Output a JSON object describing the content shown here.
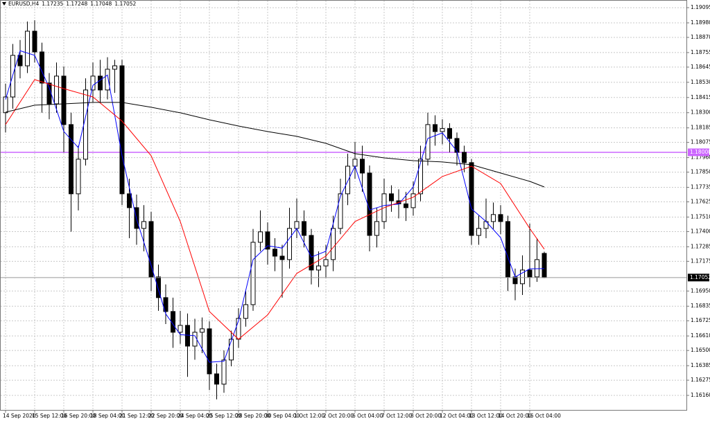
{
  "chart_data": {
    "type": "candlestick",
    "title": "EURUSD,H4",
    "categories": [
      "14 Sep 2020",
      null,
      null,
      null,
      "15 Sep 12:00",
      null,
      null,
      null,
      "16 Sep 20:00",
      null,
      null,
      null,
      "18 Sep 04:00",
      null,
      null,
      null,
      "21 Sep 12:00",
      null,
      null,
      null,
      "22 Sep 20:00",
      null,
      null,
      null,
      "24 Sep 04:00",
      null,
      null,
      null,
      "25 Sep 12:00",
      null,
      null,
      null,
      "28 Sep 20:00",
      null,
      null,
      null,
      "30 Sep 04:00",
      null,
      null,
      null,
      "1 Oct 12:00",
      null,
      null,
      null,
      "2 Oct 20:00",
      null,
      null,
      null,
      "6 Oct 04:00",
      null,
      null,
      null,
      "7 Oct 12:00",
      null,
      null,
      null,
      "8 Oct 20:00",
      null,
      null,
      null,
      "12 Oct 04:00",
      null,
      null,
      null,
      "13 Oct 12:00",
      null,
      null,
      null,
      "14 Oct 20:00",
      null,
      null,
      null,
      "16 Oct 04:00",
      null,
      null
    ],
    "open": [
      1.183,
      1.18419,
      1.18734,
      1.18655,
      1.18917,
      1.1876,
      1.18524,
      1.18367,
      1.18577,
      1.1821,
      1.17686,
      1.17948,
      1.18472,
      1.18577,
      1.18472,
      1.18629,
      1.18655,
      1.17686,
      1.17581,
      1.17424,
      1.17476,
      1.17057,
      1.169,
      1.16795,
      1.16638,
      1.1669,
      1.16533,
      1.16638,
      1.16664,
      1.16323,
      1.16245,
      1.16428,
      1.16585,
      1.16743,
      1.16847,
      1.17319,
      1.17398,
      1.17267,
      1.17214,
      1.17188,
      1.17424,
      1.17476,
      1.17371,
      1.17109,
      1.1714,
      1.17188,
      1.17424,
      1.17686,
      1.17895,
      1.17948,
      1.17843,
      1.17371,
      1.17476,
      1.17686,
      1.17633,
      1.1761,
      1.17581,
      1.17686,
      1.17948,
      1.1821,
      1.18157,
      1.1818,
      1.18105,
      1.18,
      1.17922,
      1.17371,
      1.17424,
      1.17476,
      1.17529,
      1.17476,
      1.17057,
      1.17005,
      1.17109,
      1.17057,
      1.17235
    ],
    "high": [
      1.1852,
      1.1882,
      1.1885,
      1.1899,
      1.19,
      1.1883,
      1.186,
      1.1868,
      1.1865,
      1.183,
      1.1805,
      1.1856,
      1.1868,
      1.187,
      1.1872,
      1.187,
      1.187,
      1.178,
      1.1768,
      1.176,
      1.1755,
      1.1715,
      1.17,
      1.169,
      1.168,
      1.1678,
      1.1674,
      1.1675,
      1.1672,
      1.164,
      1.165,
      1.1665,
      1.1682,
      1.1695,
      1.1742,
      1.1756,
      1.1747,
      1.1735,
      1.173,
      1.1758,
      1.1765,
      1.1756,
      1.1742,
      1.1725,
      1.173,
      1.1752,
      1.178,
      1.1799,
      1.1808,
      1.1805,
      1.179,
      1.1758,
      1.178,
      1.1775,
      1.1772,
      1.177,
      1.1778,
      1.1805,
      1.183,
      1.1828,
      1.1825,
      1.1822,
      1.1815,
      1.1805,
      1.1795,
      1.1752,
      1.1765,
      1.1762,
      1.176,
      1.1752,
      1.1712,
      1.1722,
      1.1746,
      1.1735,
      1.17248
    ],
    "low": [
      1.1815,
      1.1833,
      1.1856,
      1.186,
      1.1868,
      1.183,
      1.1825,
      1.183,
      1.18,
      1.174,
      1.1756,
      1.179,
      1.1838,
      1.1838,
      1.184,
      1.1845,
      1.176,
      1.1735,
      1.173,
      1.1725,
      1.1695,
      1.168,
      1.167,
      1.1652,
      1.1655,
      1.163,
      1.1643,
      1.1648,
      1.162,
      1.1613,
      1.1618,
      1.1638,
      1.1652,
      1.1668,
      1.168,
      1.1725,
      1.1715,
      1.171,
      1.169,
      1.1712,
      1.1735,
      1.1728,
      1.17,
      1.1698,
      1.1705,
      1.171,
      1.1738,
      1.176,
      1.178,
      1.177,
      1.1725,
      1.1728,
      1.1742,
      1.1755,
      1.175,
      1.1748,
      1.1752,
      1.1763,
      1.179,
      1.1805,
      1.1806,
      1.18,
      1.179,
      1.1785,
      1.173,
      1.173,
      1.1735,
      1.1742,
      1.1738,
      1.1695,
      1.1688,
      1.1692,
      1.1698,
      1.1702,
      1.17048
    ],
    "close": [
      1.18419,
      1.18734,
      1.18655,
      1.18917,
      1.1876,
      1.18524,
      1.18367,
      1.18577,
      1.1821,
      1.17686,
      1.17948,
      1.18472,
      1.18577,
      1.18472,
      1.18629,
      1.18655,
      1.17686,
      1.17581,
      1.17424,
      1.17476,
      1.17057,
      1.169,
      1.16795,
      1.16638,
      1.1669,
      1.16533,
      1.16638,
      1.16664,
      1.16323,
      1.16245,
      1.16428,
      1.16585,
      1.16743,
      1.16847,
      1.17319,
      1.17398,
      1.17267,
      1.17214,
      1.17188,
      1.17424,
      1.17476,
      1.17371,
      1.17109,
      1.1714,
      1.17188,
      1.17424,
      1.17686,
      1.17895,
      1.17948,
      1.17843,
      1.17371,
      1.17476,
      1.17686,
      1.17633,
      1.1761,
      1.17581,
      1.17686,
      1.17948,
      1.1821,
      1.18157,
      1.1818,
      1.18105,
      1.18,
      1.17922,
      1.17371,
      1.17424,
      1.17476,
      1.17529,
      1.17476,
      1.17057,
      1.17005,
      1.17109,
      1.17057,
      1.17188,
      1.17052
    ],
    "up_color": "#ffffff",
    "down_color": "#000000",
    "lines": [
      {
        "color": "#0000ff",
        "x": [
          0,
          2,
          4,
          6,
          8,
          10,
          12,
          14,
          16,
          18,
          20,
          22,
          24,
          26,
          28,
          30,
          32,
          34,
          36,
          38,
          40,
          42,
          44,
          46,
          48,
          50,
          52,
          54,
          56,
          58,
          60,
          62,
          64,
          66,
          68,
          70,
          72,
          74
        ],
        "values": [
          1.184,
          1.18769,
          1.18734,
          1.18489,
          1.18158,
          1.18035,
          1.18507,
          1.18585,
          1.17974,
          1.17494,
          1.17144,
          1.16778,
          1.1662,
          1.16612,
          1.16411,
          1.16419,
          1.16725,
          1.17188,
          1.17293,
          1.17275,
          1.17424,
          1.17207,
          1.17251,
          1.17668,
          1.17895,
          1.17563,
          1.17598,
          1.17608,
          1.17738,
          1.18105,
          1.18147,
          1.18009,
          1.17572,
          1.17476,
          1.17354,
          1.17057,
          1.17118,
          1.1712
        ]
      },
      {
        "color": "#ff0000",
        "x": [
          0,
          4,
          8,
          12,
          16,
          20,
          24,
          28,
          32,
          36,
          40,
          44,
          48,
          52,
          56,
          60,
          64,
          68,
          72,
          74
        ],
        "values": [
          1.1821,
          1.1855,
          1.18482,
          1.18419,
          1.18236,
          1.17974,
          1.17476,
          1.16795,
          1.16585,
          1.16769,
          1.17083,
          1.17214,
          1.17476,
          1.17581,
          1.1766,
          1.17817,
          1.17895,
          1.17764,
          1.17424,
          1.17267
        ]
      },
      {
        "color": "#000000",
        "x": [
          0,
          4,
          8,
          12,
          16,
          20,
          24,
          28,
          32,
          36,
          40,
          44,
          48,
          52,
          56,
          60,
          64,
          68,
          72,
          74
        ],
        "values": [
          1.18304,
          1.18357,
          1.18367,
          1.18378,
          1.18378,
          1.18341,
          1.18299,
          1.18246,
          1.18199,
          1.18157,
          1.18121,
          1.18068,
          1.1799,
          1.17958,
          1.17937,
          1.17927,
          1.17906,
          1.17843,
          1.1778,
          1.17738
        ]
      }
    ],
    "levels": [
      {
        "value": 1.18,
        "label": "1.18000",
        "color": "#cc66ff"
      }
    ],
    "ylim": [
      1.1605,
      1.19153
    ],
    "yticks": [
      1.19095,
      {
        "value": 1.1898,
        "label": "1.18980"
      },
      {
        "value": 1.1887,
        "label": "1.18870"
      },
      1.18755,
      1.18645,
      {
        "value": 1.1853,
        "label": "1.18530"
      },
      1.18415,
      {
        "value": 1.183,
        "label": "1.18300"
      },
      1.18185,
      1.18075,
      {
        "value": 1.1796,
        "label": "1.17960"
      },
      {
        "value": 1.1785,
        "label": "1.17850"
      },
      1.17735,
      1.17625,
      {
        "value": 1.1751,
        "label": "1.17510"
      },
      {
        "value": 1.174,
        "label": "1.17400"
      },
      1.17285,
      1.17175,
      {
        "value": 1.1695,
        "label": "1.16950"
      },
      1.16835,
      1.16725,
      {
        "value": 1.1661,
        "label": "1.16610"
      },
      {
        "value": 1.165,
        "label": "1.16500"
      },
      1.16385,
      1.16275,
      {
        "value": 1.1616,
        "label": "1.16160"
      }
    ],
    "grid": true
  }
}
